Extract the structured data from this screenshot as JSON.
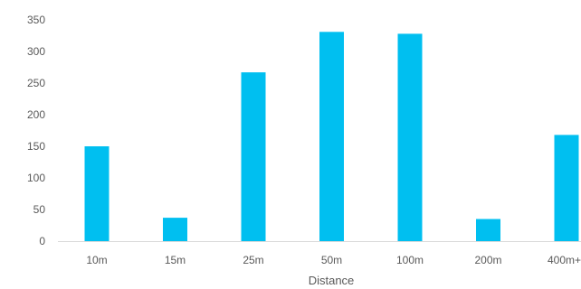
{
  "chart_data": {
    "type": "bar",
    "title": "",
    "xlabel": "Distance",
    "ylabel": "",
    "categories": [
      "10m",
      "15m",
      "25m",
      "50m",
      "100m",
      "200m",
      "400m+"
    ],
    "values": [
      150,
      37,
      267,
      331,
      328,
      35,
      168
    ],
    "ylim": [
      0,
      350
    ],
    "yticks": [
      0,
      50,
      100,
      150,
      200,
      250,
      300,
      350
    ],
    "grid": false,
    "legend": "none",
    "bar_color": "#00BFF0",
    "axis_color": "#D9D9D9"
  }
}
